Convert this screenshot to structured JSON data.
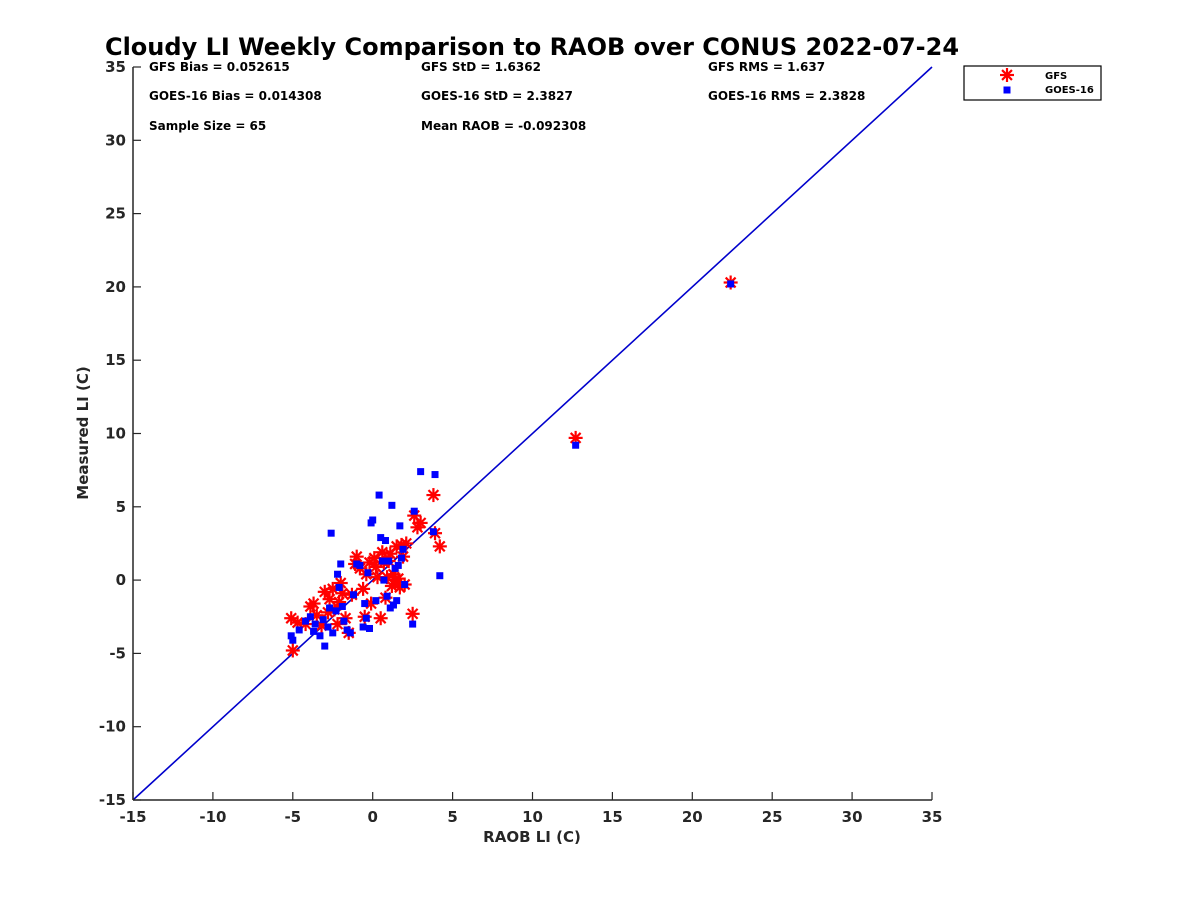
{
  "chart_data": {
    "type": "scatter",
    "title": "Cloudy LI Weekly Comparison to RAOB over CONUS 2022-07-24",
    "xlabel": "RAOB LI (C)",
    "ylabel": "Measured LI (C)",
    "xlim": [
      -15,
      35
    ],
    "ylim": [
      -15,
      35
    ],
    "xticks": [
      -15,
      -10,
      -5,
      0,
      5,
      10,
      15,
      20,
      25,
      30,
      35
    ],
    "yticks": [
      -15,
      -10,
      -5,
      0,
      5,
      10,
      15,
      20,
      25,
      30,
      35
    ],
    "grid": false,
    "legend_position": "outside top-right",
    "reference_line": {
      "x": [
        -15,
        35
      ],
      "y": [
        -15,
        35
      ],
      "color": "#0000cc"
    },
    "stats": [
      "GFS Bias = 0.052615",
      "GFS StD = 1.6362",
      "GFS RMS = 1.637",
      "GOES-16 Bias = 0.014308",
      "GOES-16 StD = 2.3827",
      "GOES-16 RMS = 2.3828",
      "Sample Size = 65",
      "Mean RAOB = -0.092308"
    ],
    "series": [
      {
        "name": "GFS",
        "marker": "asterisk",
        "color": "#ff0000",
        "x": [
          -5.1,
          -5.0,
          -4.7,
          -4.2,
          -3.9,
          -3.7,
          -3.5,
          -3.2,
          -3.0,
          -2.8,
          -2.7,
          -2.5,
          -2.4,
          -2.2,
          -2.1,
          -2.0,
          -1.9,
          -1.7,
          -1.5,
          -1.3,
          -1.1,
          -1.0,
          -0.8,
          -0.6,
          -0.5,
          -0.4,
          -0.2,
          -0.1,
          0.1,
          0.2,
          0.3,
          0.5,
          0.6,
          0.7,
          0.8,
          0.9,
          1.0,
          1.1,
          1.2,
          1.3,
          1.4,
          1.5,
          1.6,
          1.7,
          1.8,
          1.9,
          2.0,
          2.1,
          2.5,
          2.6,
          2.8,
          3.0,
          3.8,
          3.9,
          4.2,
          12.7,
          22.4
        ],
        "y": [
          -2.6,
          -4.8,
          -2.9,
          -3.0,
          -1.8,
          -1.6,
          -2.4,
          -3.1,
          -0.8,
          -2.2,
          -1.3,
          -0.6,
          -2.0,
          -3.0,
          -1.5,
          -0.2,
          -0.9,
          -2.6,
          -3.6,
          -1.0,
          1.1,
          1.6,
          0.8,
          -0.6,
          -2.5,
          0.4,
          1.2,
          -1.6,
          1.5,
          0.9,
          0.2,
          -2.6,
          1.9,
          1.2,
          -1.2,
          0.2,
          1.3,
          1.8,
          -0.4,
          0.4,
          0.0,
          2.3,
          0.1,
          -0.5,
          2.4,
          1.6,
          -0.3,
          2.5,
          -2.3,
          4.4,
          3.6,
          3.9,
          5.8,
          3.2,
          2.3,
          9.7,
          20.3
        ]
      },
      {
        "name": "GOES-16",
        "marker": "square",
        "color": "#0000ff",
        "x": [
          -5.1,
          -5.0,
          -4.6,
          -4.2,
          -3.9,
          -3.7,
          -3.6,
          -3.3,
          -3.1,
          -3.0,
          -2.8,
          -2.7,
          -2.6,
          -2.5,
          -2.3,
          -2.2,
          -2.1,
          -2.0,
          -1.9,
          -1.8,
          -1.6,
          -1.4,
          -1.2,
          -1.0,
          -0.8,
          -0.6,
          -0.5,
          -0.4,
          -0.3,
          -0.2,
          -0.1,
          0.0,
          0.2,
          0.4,
          0.5,
          0.6,
          0.7,
          0.8,
          0.9,
          1.0,
          1.1,
          1.2,
          1.3,
          1.4,
          1.5,
          1.6,
          1.7,
          1.8,
          1.9,
          2.0,
          2.5,
          2.6,
          3.0,
          3.8,
          3.9,
          4.2,
          12.7,
          22.4
        ],
        "y": [
          -3.8,
          -4.1,
          -3.4,
          -2.8,
          -2.5,
          -3.5,
          -3.0,
          -3.8,
          -2.7,
          -4.5,
          -3.2,
          -1.9,
          3.2,
          -3.6,
          -2.1,
          0.4,
          -0.5,
          1.1,
          -1.8,
          -2.8,
          -3.4,
          -3.6,
          -1.0,
          1.1,
          1.0,
          -3.2,
          -1.6,
          -2.6,
          0.5,
          -3.3,
          3.9,
          4.1,
          -1.4,
          5.8,
          2.9,
          1.3,
          0.0,
          2.7,
          -1.1,
          1.3,
          -1.9,
          5.1,
          -1.7,
          0.8,
          -1.4,
          1.0,
          3.7,
          1.5,
          2.1,
          -0.3,
          -3.0,
          4.7,
          7.4,
          3.3,
          7.2,
          0.3,
          9.2,
          20.2
        ]
      }
    ]
  }
}
